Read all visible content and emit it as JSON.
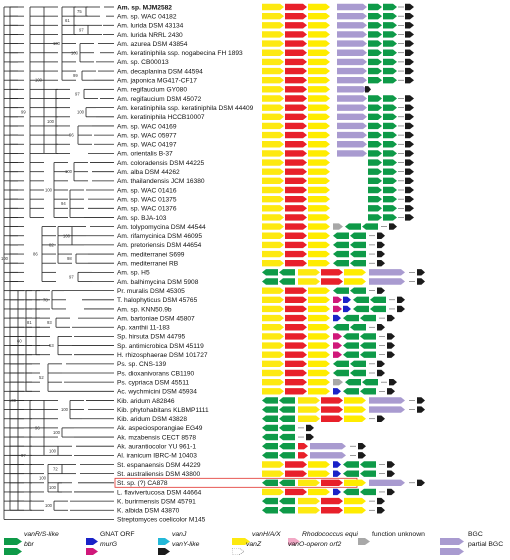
{
  "taxa": [
    {
      "name": "Am. sp. MJM2582",
      "bold": true,
      "genes": "vhbsr"
    },
    {
      "name": "Am. sp. WAC 04182",
      "genes": "vhbsr"
    },
    {
      "name": "Am. lurida DSM 43134",
      "genes": "vhbsr"
    },
    {
      "name": "Am. lurida NRRL 2430",
      "genes": "vhbsr"
    },
    {
      "name": "Am. azurea DSM 43854",
      "genes": "vhbsr"
    },
    {
      "name": "Am. keratiniphila ssp. nogabecina FH 1893",
      "genes": "vhbsr"
    },
    {
      "name": "Am. sp. CB00013",
      "genes": "vhbsr"
    },
    {
      "name": "Am. decaplanina DSM 44594",
      "genes": "vhbsr"
    },
    {
      "name": "Am. japonica MG417-CF17",
      "genes": "vhbsr"
    },
    {
      "name": "Am. regifaucium GY080",
      "genes": "vhbk"
    },
    {
      "name": "Am. regifaucium DSM 45072",
      "genes": "vhbsr"
    },
    {
      "name": "Am. keratiniphila ssp. keratiniphila DSM 44409",
      "genes": "vhbsr"
    },
    {
      "name": "Am. keratiniphila HCCB10007",
      "genes": "vhbsr"
    },
    {
      "name": "Am. sp. WAC 04169",
      "genes": "vhbsr"
    },
    {
      "name": "Am. sp. WAC 05977",
      "genes": "vhbsr"
    },
    {
      "name": "Am. sp. WAC 04197",
      "genes": "vhbsr"
    },
    {
      "name": "Am. orientalis B-37",
      "genes": "vhbsr"
    },
    {
      "name": "Am. coloradensis DSM 44225",
      "genes": "vhsr"
    },
    {
      "name": "Am. alba DSM 44262",
      "genes": "vhsr"
    },
    {
      "name": "Am. thailandensis JCM 16380",
      "genes": "vhsr"
    },
    {
      "name": "Am. sp. WAC 01416",
      "genes": "vhsr"
    },
    {
      "name": "Am. sp. WAC 01375",
      "genes": "vhsr"
    },
    {
      "name": "Am. sp. WAC 01376",
      "genes": "vhsr"
    },
    {
      "name": "Am. sp. BJA-103",
      "genes": "vhsr"
    },
    {
      "name": "Am. tolypomycina DSM 44544",
      "genes": "vgs"
    },
    {
      "name": "Am. rifamycinica DSM 46095",
      "genes": "vs"
    },
    {
      "name": "Am. pretoriensis DSM 44654",
      "genes": "vs"
    },
    {
      "name": "Am. mediterranei S699",
      "genes": "vs"
    },
    {
      "name": "Am. mediterranei RB",
      "genes": "vs"
    },
    {
      "name": "Am. sp. H5",
      "genes": "ssvhb"
    },
    {
      "name": "Am. balhimycina DSM 5908",
      "genes": "ssvhb"
    },
    {
      "name": "Pr. muralis DSM 45305",
      "genes": "vs2"
    },
    {
      "name": "T. halophyticus DSM 45765",
      "genes": "vpb"
    },
    {
      "name": "Am. sp. KNN50.9b",
      "genes": "vpb"
    },
    {
      "name": "Am. bartoniae DSM 45807",
      "genes": "vbk"
    },
    {
      "name": "Ap. xanthii 11-183",
      "genes": "vsk"
    },
    {
      "name": "Sp. hirsuta DSM 44795",
      "genes": "vp"
    },
    {
      "name": "Sp. antimicrobica DSM 45119",
      "genes": "vp"
    },
    {
      "name": "H. rhizosphaerae DSM 101727",
      "genes": "vp"
    },
    {
      "name": "Ps. sp. CNS-139",
      "genes": "v"
    },
    {
      "name": "Ps. dioxanivorans CB1190",
      "genes": "vs"
    },
    {
      "name": "Ps. cypriaca DSM 45511",
      "genes": "vsg"
    },
    {
      "name": "Ac. wychmicini DSM 45934",
      "genes": "vb"
    },
    {
      "name": "Kib. aridum A82846",
      "genes": "svhb"
    },
    {
      "name": "Kib. phytohabitans KLBMP1111",
      "genes": "svhb"
    },
    {
      "name": "Kib. aridum DSM 43828",
      "genes": "svh"
    },
    {
      "name": "Ak. aspeciosporangiae EG49",
      "genes": "s"
    },
    {
      "name": "Ak. mzabensis CECT 8578",
      "genes": "s"
    },
    {
      "name": "Ak. aurantiocolor YU 961-1",
      "genes": "shb"
    },
    {
      "name": "Al. iranicum IBRC-M 10403",
      "genes": "shb"
    },
    {
      "name": "St. espanaensis DSM 44229",
      "genes": "vsb"
    },
    {
      "name": "St. australiensis DSM 43800",
      "genes": "vsb"
    },
    {
      "name": "St. sp. (?) CA878",
      "genes": "svhb",
      "boxed": true
    },
    {
      "name": "L. flavivertucosa DSM 44664",
      "genes": "vsb"
    },
    {
      "name": "K. burirmensis DSM 45791",
      "genes": "svm"
    },
    {
      "name": "K. albida DSM 43870",
      "genes": "svm"
    },
    {
      "name": "Streptomyces coelicolor M145",
      "genes": ""
    }
  ],
  "bootstrap": [
    "75",
    "97",
    "61",
    "100",
    "99",
    "100",
    "97",
    "100",
    "96",
    "100",
    "100",
    "100",
    "94",
    "100",
    "99",
    "100",
    "98",
    "82",
    "97",
    "86",
    "78",
    "93",
    "53",
    "81",
    "52",
    "60",
    "100",
    "100",
    "100",
    "96",
    "72",
    "100",
    "100",
    "100",
    "97",
    "100",
    "100",
    "60"
  ],
  "legend": {
    "vanRS": "vanR/S-like",
    "bbr": "bbr",
    "gnat": "GNAT ORF",
    "murG": "murG",
    "vanJ": "vanJ",
    "vanY": "vanY-like",
    "vanHAX": "vanH/A/X",
    "vanZ": "vanZ",
    "rhodo": "Rhodococcus equi",
    "vanO": "vanO-operon orf2",
    "unknown": "function unknown",
    "bgc": "BGC",
    "partial": "partial BGC"
  },
  "colors": {
    "vanH": "#fde910",
    "vanA": "#e8202a",
    "vanX": "#ffec00",
    "vanRS": "#0e9a48",
    "bbr": "#0e9a48",
    "gnat": "#1a22c8",
    "murG": "#d0187a",
    "vanJ": "#23b8d8",
    "vanY": "#1b1b1b",
    "vanZ": "#ffffff",
    "rhodo": "#f2a9c6",
    "unknown": "#a8a8a8",
    "bgc": "#a99bd0"
  }
}
